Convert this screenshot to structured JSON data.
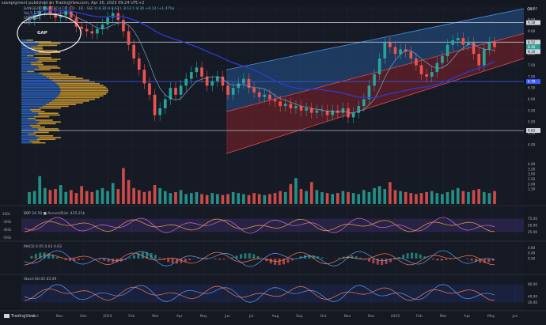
{
  "header": {
    "publisher": "savepigment published on TradingView.com, Apr 30, 2025 09:24 UTC+2"
  },
  "legend_main": {
    "title": "BANGGOOD EDTECH CO LTD · 1D · SSE",
    "values": "O 8.30  H 8.62  L 8.12  C 8.30  +0.12 (+1.47%)",
    "line2": "Vol  5.37M",
    "line3": "SMA  8.18",
    "line4": "SMA"
  },
  "annotations": {
    "gap": "GAP"
  },
  "branding": {
    "tradingview": "TradingView"
  },
  "currency": "CNY",
  "colors": {
    "up": "#26a69a",
    "down": "#ef5350",
    "profile": "#e0a82e",
    "profile_b": "#2f6fd6",
    "channel_blue": "#2a76c7",
    "channel_red": "#c0282f",
    "ma_blue": "#2b3bd6",
    "ma_thin": "#7fa1c9"
  },
  "chart_data": [
    {
      "type": "line",
      "pane": "price",
      "ylim": [
        3.4,
        10.1
      ],
      "y_ticks": [
        "4.00",
        "4.50",
        "5.00",
        "5.50",
        "6.00",
        "6.50",
        "7.00",
        "7.50",
        "8.00",
        "8.50",
        "9.00",
        "9.50",
        "10.00"
      ],
      "x_ticks": [
        "Oct",
        "Nov",
        "Dec",
        "2024",
        "Feb",
        "Mar",
        "Apr",
        "May",
        "Jun",
        "Jul",
        "Aug",
        "Sep",
        "Oct",
        "Nov",
        "Dec",
        "2025",
        "Feb",
        "Mar",
        "Apr",
        "May",
        "Jun"
      ],
      "price_labels": [
        "9.38",
        "8.52",
        "8.30",
        "8.10",
        "6.78",
        "4.62"
      ],
      "highlight_labels": [
        "8.30"
      ],
      "horizontal_levels": [
        9.38,
        8.52,
        6.78,
        4.62
      ],
      "close": [
        9.5,
        9.7,
        9.9,
        10.1,
        9.8,
        9.6,
        9.7,
        9.9,
        9.6,
        9.2,
        9.1,
        9.0,
        8.9,
        9.1,
        9.3,
        9.6,
        9.8,
        9.5,
        9.0,
        8.4,
        7.8,
        7.3,
        6.7,
        6.2,
        5.3,
        5.6,
        6.0,
        6.5,
        6.2,
        6.6,
        6.9,
        7.2,
        7.4,
        7.0,
        6.6,
        6.8,
        7.0,
        6.6,
        6.2,
        6.5,
        6.7,
        6.9,
        6.5,
        6.3,
        6.1,
        6.2,
        6.0,
        5.9,
        5.7,
        5.8,
        5.6,
        5.7,
        5.5,
        5.6,
        5.4,
        5.5,
        5.5,
        5.3,
        5.5,
        5.4,
        5.6,
        5.2,
        5.4,
        5.7,
        6.0,
        6.6,
        7.1,
        7.8,
        8.5,
        8.3,
        8.0,
        8.2,
        8.1,
        7.8,
        7.5,
        7.1,
        7.0,
        7.2,
        7.6,
        7.9,
        8.4,
        8.6,
        8.7,
        8.4,
        8.5,
        8.0,
        7.5,
        8.2,
        8.5,
        8.3
      ],
      "x_range": [
        "Oct",
        "Jun"
      ],
      "sma_fast_note": "thin light-blue moving average",
      "sma_slow_note": "thick blue moving average",
      "channel": {
        "lower_start": 3.6,
        "lower_end": 7.8,
        "upper_start": 7.3,
        "upper_end": 10.0
      }
    },
    {
      "type": "bar",
      "pane": "volume",
      "ylim": [
        0,
        5
      ],
      "y_ticks": [
        "1.50",
        "2.00",
        "2.50",
        "3.00",
        "3.50",
        "4.00"
      ],
      "values": [
        1.2,
        1.3,
        2.8,
        1.6,
        1.4,
        1.5,
        1.9,
        1.2,
        1.4,
        1.1,
        1.8,
        1.3,
        1.2,
        1.4,
        1.6,
        1.3,
        2.1,
        1.5,
        3.6,
        2.4,
        1.6,
        1.4,
        1.2,
        1.3,
        1.9,
        1.6,
        1.3,
        1.1,
        1.2,
        1.4,
        1.0,
        1.1,
        1.2,
        1.0,
        0.9,
        1.1,
        1.0,
        0.9,
        1.0,
        1.2,
        1.1,
        1.0,
        0.9,
        1.1,
        1.0,
        0.9,
        1.0,
        1.1,
        1.3,
        1.2,
        2.0,
        2.6,
        1.5,
        1.3,
        2.2,
        1.4,
        1.2,
        1.1,
        1.0,
        1.1,
        1.3,
        1.2,
        1.1,
        1.0,
        1.4,
        1.2,
        1.6,
        1.8,
        1.5,
        2.2,
        1.4,
        1.3,
        1.2,
        1.1,
        1.0,
        1.1,
        1.2,
        1.3,
        1.1,
        1.0,
        1.2,
        1.4,
        1.6,
        1.3,
        1.2,
        1.4,
        1.5,
        1.2,
        1.1,
        1.3
      ]
    },
    {
      "type": "line",
      "pane": "indicator_1",
      "label": "BBP  24.50  ■  Accum/Dist  -425.21k",
      "y_ticks": [
        "75.00",
        "50.00",
        "25.00"
      ],
      "left_ticks": [
        "200k",
        "-300k",
        "-400k",
        "-500k"
      ],
      "ylim": [
        0,
        100
      ]
    },
    {
      "type": "line",
      "pane": "macd",
      "label": "MACD  0.05  0.03  0.03",
      "y_ticks": [
        "0.80",
        "0.40",
        "0.00"
      ],
      "ylim": [
        -1.0,
        1.0
      ]
    },
    {
      "type": "line",
      "pane": "stoch",
      "label": "Stoch  60.45  63.09",
      "y_ticks": [
        "80.00",
        "40.00",
        "20.00"
      ],
      "ylim": [
        0,
        100
      ]
    }
  ]
}
